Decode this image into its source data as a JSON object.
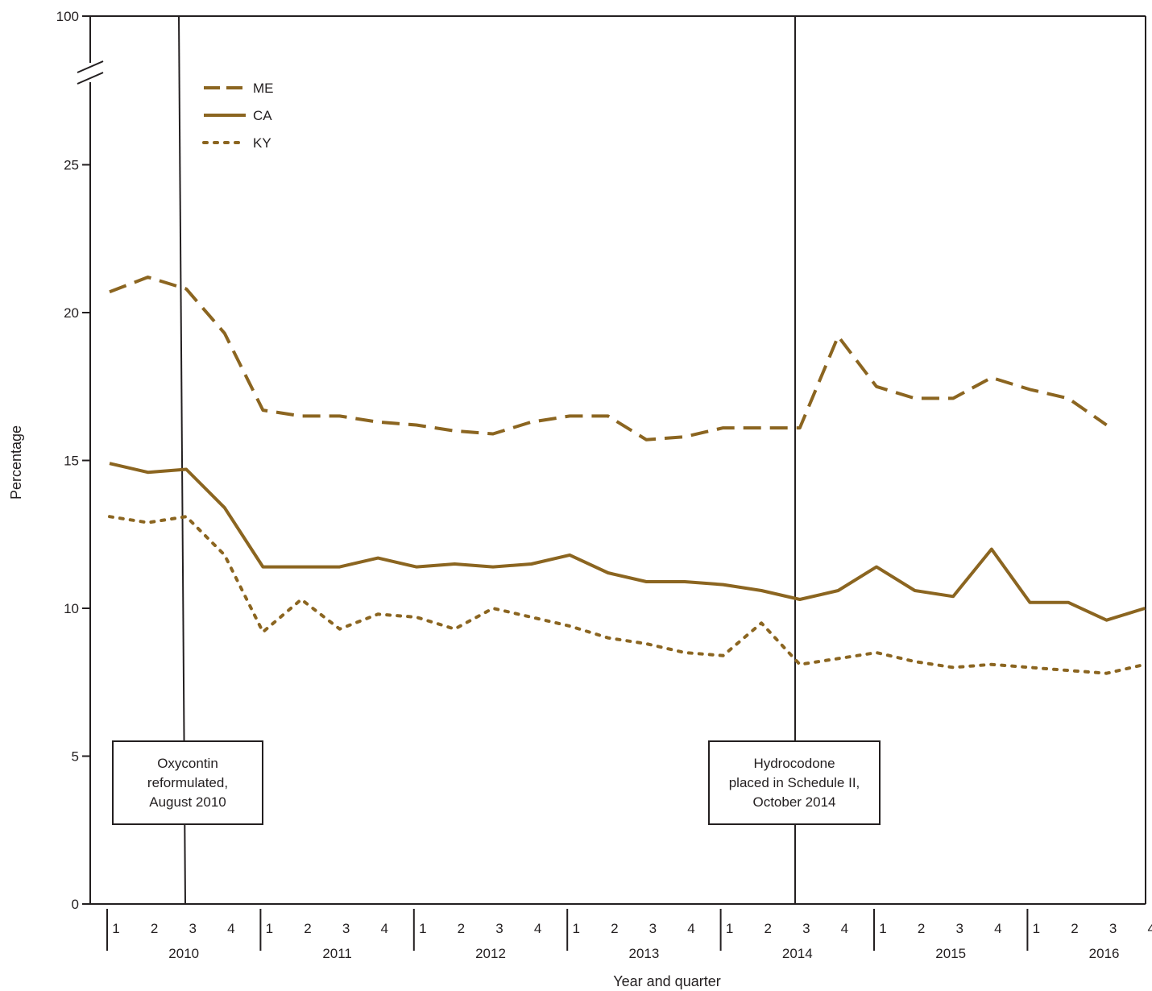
{
  "chart_data": {
    "type": "line",
    "xlabel": "Year and quarter",
    "ylabel": "Percentage",
    "y_ticks": [
      "0",
      "5",
      "10",
      "15",
      "20",
      "25",
      "100"
    ],
    "y_axis_break": "between 25 and 100",
    "years": [
      "2010",
      "2011",
      "2012",
      "2013",
      "2014",
      "2015",
      "2016"
    ],
    "quarters": [
      "1",
      "2",
      "3",
      "4"
    ],
    "legend_position": "top-left",
    "grid": false,
    "series": [
      {
        "name": "ME",
        "style": "dashed",
        "color": "#8b6520",
        "values": [
          20.7,
          21.2,
          20.8,
          19.3,
          16.7,
          16.5,
          16.5,
          16.3,
          16.2,
          16.0,
          15.9,
          16.3,
          16.5,
          16.5,
          15.7,
          15.8,
          16.1,
          16.1,
          16.1,
          19.2,
          17.5,
          17.1,
          17.1,
          17.8,
          17.4,
          17.1,
          16.2,
          null
        ]
      },
      {
        "name": "CA",
        "style": "solid",
        "color": "#8b6520",
        "values": [
          14.9,
          14.6,
          14.7,
          13.4,
          11.4,
          11.4,
          11.4,
          11.7,
          11.4,
          11.5,
          11.4,
          11.5,
          11.8,
          11.2,
          10.9,
          10.9,
          10.8,
          10.6,
          10.3,
          10.6,
          11.4,
          10.6,
          10.4,
          12.0,
          10.2,
          10.2,
          9.6,
          10.0
        ]
      },
      {
        "name": "KY",
        "style": "dotted",
        "color": "#8b6520",
        "values": [
          13.1,
          12.9,
          13.1,
          11.8,
          9.2,
          10.3,
          9.3,
          9.8,
          9.7,
          9.3,
          10.0,
          9.7,
          9.4,
          9.0,
          8.8,
          8.5,
          8.4,
          9.5,
          8.1,
          8.3,
          8.5,
          8.2,
          8.0,
          8.1,
          8.0,
          7.9,
          7.8,
          8.1
        ]
      }
    ],
    "annotations": [
      {
        "lines": [
          "Oxycontin",
          "reformulated,",
          "August 2010"
        ],
        "x_year": "2010",
        "x_quarter": "3"
      },
      {
        "lines": [
          "Hydrocodone",
          "placed in Schedule II,",
          "October 2014"
        ],
        "x_year": "2014",
        "x_quarter": "3"
      }
    ]
  }
}
